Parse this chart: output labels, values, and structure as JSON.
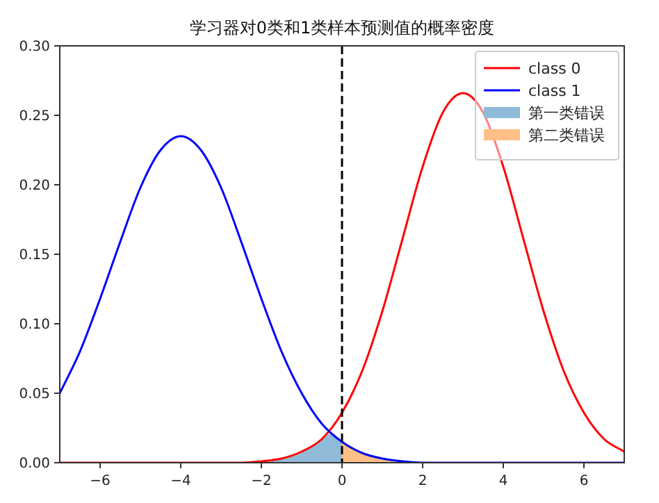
{
  "chart_data": {
    "type": "line",
    "title": "学习器对0类和1类样本预测值的概率密度",
    "x": [
      -7,
      -6.5,
      -6,
      -5.5,
      -5,
      -4.5,
      -4,
      -3.5,
      -3,
      -2.5,
      -2,
      -1.5,
      -1,
      -0.5,
      0,
      0.5,
      1,
      1.5,
      2,
      2.5,
      3,
      3.5,
      4,
      4.5,
      5,
      5.5,
      6,
      6.5,
      7
    ],
    "series": [
      {
        "name": "class 0",
        "color": "#ff0000",
        "values": [
          0,
          0,
          0,
          0,
          0,
          0,
          0,
          0,
          0,
          0,
          0.001,
          0.003,
          0.008,
          0.017,
          0.036,
          0.066,
          0.109,
          0.161,
          0.213,
          0.252,
          0.266,
          0.252,
          0.213,
          0.161,
          0.109,
          0.066,
          0.036,
          0.017,
          0.008
        ]
      },
      {
        "name": "class 1",
        "color": "#0000ff",
        "values": [
          0.05,
          0.08,
          0.118,
          0.159,
          0.198,
          0.225,
          0.235,
          0.225,
          0.198,
          0.159,
          0.118,
          0.08,
          0.05,
          0.028,
          0.015,
          0.007,
          0.003,
          0.001,
          0,
          0,
          0,
          0,
          0,
          0,
          0,
          0,
          0,
          0,
          0
        ]
      },
      {
        "name": "第一类错误",
        "type": "area",
        "color": "#8fbbd9",
        "x": [
          -2.5,
          -2,
          -1.5,
          -1,
          -0.5,
          -0.25,
          0
        ],
        "values": [
          0,
          0.001,
          0.003,
          0.008,
          0.017,
          0.021,
          0.015
        ]
      },
      {
        "name": "第二类错误",
        "type": "area",
        "color": "#ffbf86",
        "x": [
          0,
          0.5,
          1,
          1.5,
          2
        ],
        "values": [
          0.015,
          0.007,
          0.003,
          0.001,
          0
        ]
      }
    ],
    "xlim": [
      -7,
      7
    ],
    "xticks": [
      {
        "value": -6,
        "label": "−6"
      },
      {
        "value": -4,
        "label": "−4"
      },
      {
        "value": -2,
        "label": "−2"
      },
      0,
      2,
      4,
      6
    ],
    "ylim": [
      0,
      0.3
    ],
    "yticks": [
      {
        "value": 0,
        "label": "0.00"
      },
      {
        "value": 0.05,
        "label": "0.05"
      },
      {
        "value": 0.1,
        "label": "0.10"
      },
      {
        "value": 0.15,
        "label": "0.15"
      },
      {
        "value": 0.2,
        "label": "0.20"
      },
      {
        "value": 0.25,
        "label": "0.25"
      },
      {
        "value": 0.3,
        "label": "0.30"
      }
    ],
    "ref_lines": [
      {
        "axis": "x",
        "value": 0,
        "color": "#000000",
        "line_style": "dashed"
      }
    ],
    "legend": "top right"
  }
}
